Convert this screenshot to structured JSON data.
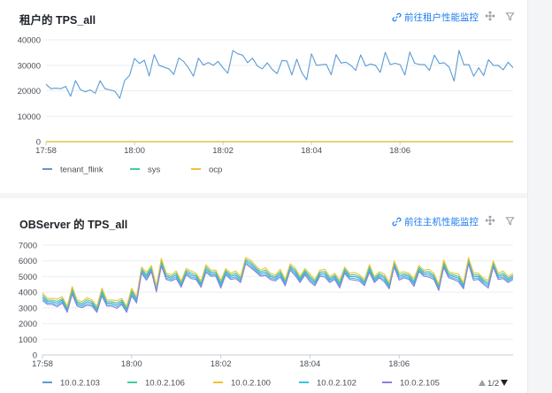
{
  "panels": [
    {
      "title": "租户的 TPS_all",
      "link_label": "前往租户性能监控",
      "link_icon": "link-icon",
      "tools": [
        "drag-icon",
        "filter-icon"
      ],
      "chart_data": {
        "type": "line",
        "ylim": [
          0,
          40000
        ],
        "yticks": [
          0,
          10000,
          20000,
          30000,
          40000
        ],
        "x_start": "17:58",
        "x_tick_labels": [
          "17:58",
          "18:00",
          "18:02",
          "18:04",
          "18:06"
        ],
        "x_tick_positions": [
          0,
          18,
          36,
          54,
          72
        ],
        "series": [
          {
            "name": "tenant_flink",
            "color": "#5b9bd5",
            "values": [
              22500,
              20800,
              21000,
              20800,
              21700,
              17800,
              24000,
              20400,
              19600,
              20300,
              19000,
              23900,
              20800,
              20300,
              19800,
              17000,
              24000,
              26000,
              32700,
              30700,
              32000,
              25800,
              34200,
              30000,
              29300,
              28600,
              26400,
              32900,
              31500,
              28900,
              25700,
              32800,
              30100,
              31100,
              30000,
              31500,
              29000,
              26900,
              35800,
              34500,
              34000,
              31000,
              32800,
              29700,
              28600,
              31000,
              28400,
              26700,
              31900,
              31700,
              26200,
              32400,
              27200,
              24300,
              34500,
              30000,
              30200,
              30400,
              26300,
              34200,
              30900,
              31200,
              30000,
              28000,
              34100,
              29700,
              30500,
              30000,
              27200,
              35100,
              30300,
              30800,
              30300,
              26200,
              35200,
              30800,
              30300,
              30300,
              28000,
              34000,
              30700,
              31000,
              29300,
              23800,
              35800,
              30200,
              30300,
              25700,
              29000,
              26000,
              32200,
              29900,
              30000,
              28200,
              31200,
              29000
            ]
          },
          {
            "name": "sys",
            "color": "#3ecfa3",
            "values": [
              0,
              0
            ]
          },
          {
            "name": "ocp",
            "color": "#f1c232",
            "values": [
              0,
              0
            ]
          }
        ]
      }
    },
    {
      "title": "OBServer 的 TPS_all",
      "link_label": "前往主机性能监控",
      "link_icon": "link-icon",
      "tools": [
        "drag-icon",
        "filter-icon"
      ],
      "pager": "1/2",
      "chart_data": {
        "type": "line",
        "ylim": [
          0,
          7000
        ],
        "yticks": [
          0,
          1000,
          2000,
          3000,
          4000,
          5000,
          6000,
          7000
        ],
        "x_start": "17:58",
        "x_tick_labels": [
          "17:58",
          "18:00",
          "18:02",
          "18:04",
          "18:06"
        ],
        "x_tick_positions": [
          0,
          18,
          36,
          54,
          72
        ],
        "base": [
          3700,
          3400,
          3400,
          3300,
          3500,
          2900,
          4100,
          3300,
          3200,
          3400,
          3300,
          2900,
          4000,
          3300,
          3300,
          3200,
          3400,
          2900,
          4000,
          3500,
          5400,
          5000,
          5500,
          4200,
          5900,
          5000,
          4900,
          5100,
          4500,
          5300,
          5100,
          5000,
          4500,
          5500,
          5200,
          5200,
          4500,
          5300,
          5000,
          5100,
          4800,
          6000,
          5800,
          5500,
          5200,
          5300,
          5000,
          4900,
          5200,
          4600,
          5600,
          5300,
          4800,
          5300,
          4900,
          4600,
          5200,
          5200,
          4800,
          5000,
          4500,
          5400,
          5000,
          5000,
          4900,
          4600,
          5500,
          4800,
          5100,
          4900,
          4400,
          5800,
          5000,
          5100,
          5000,
          4600,
          5500,
          5200,
          5200,
          5000,
          4300,
          5800,
          5100,
          5000,
          4900,
          4400,
          6000,
          5000,
          5000,
          4700,
          4500,
          5800,
          5000,
          5100,
          4800,
          5000
        ],
        "series": [
          {
            "name": "10.0.2.103",
            "color": "#5b9bd5",
            "offset": 0
          },
          {
            "name": "10.0.2.106",
            "color": "#3ecfa3",
            "offset": 120
          },
          {
            "name": "10.0.2.100",
            "color": "#f1c232",
            "offset": 260
          },
          {
            "name": "10.0.2.102",
            "color": "#33c5e0",
            "offset": -120
          },
          {
            "name": "10.0.2.105",
            "color": "#8f7ddb",
            "offset": -230
          }
        ]
      }
    }
  ]
}
